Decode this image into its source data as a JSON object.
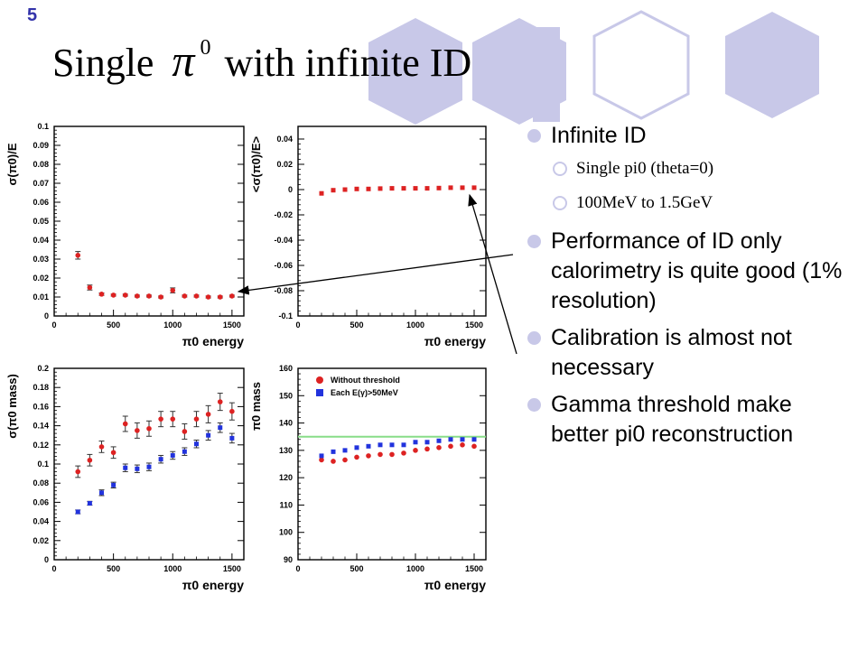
{
  "slide": {
    "number": "5",
    "title_pre": "Single",
    "title_symbol": "π",
    "title_symbol_sup": "0",
    "title_post": "with infinite ID"
  },
  "bullets": [
    {
      "level": 1,
      "text": "Infinite ID"
    },
    {
      "level": 2,
      "text": "Single pi0 (theta=0)"
    },
    {
      "level": 2,
      "text": "100MeV to 1.5GeV"
    },
    {
      "level": 1,
      "text": "Performance of ID only calorimetry is quite good (1% resolution)"
    },
    {
      "level": 1,
      "text": "Calibration is almost not necessary"
    },
    {
      "level": 1,
      "text": "Gamma threshold make better pi0 reconstruction"
    }
  ],
  "colors": {
    "red": "#dd2222",
    "blue": "#2233dd",
    "green": "#88dd88",
    "accent": "#c8c8e8"
  },
  "chart_data": [
    {
      "type": "scatter",
      "ylabel": "σ(π0)/E",
      "xlabel": "π0 energy",
      "xlim": [
        0,
        1600
      ],
      "ylim": [
        0,
        0.1
      ],
      "xticks": [
        "0",
        "500",
        "1000",
        "1500"
      ],
      "yticks": [
        "0",
        "0.01",
        "0.02",
        "0.03",
        "0.04",
        "0.05",
        "0.06",
        "0.07",
        "0.08",
        "0.09",
        "0.1"
      ],
      "series": [
        {
          "color": "#dd2222",
          "x": [
            200,
            300,
            400,
            500,
            600,
            700,
            800,
            900,
            1000,
            1100,
            1200,
            1300,
            1400,
            1500
          ],
          "y": [
            0.032,
            0.015,
            0.0115,
            0.011,
            0.011,
            0.0105,
            0.0105,
            0.01,
            0.0135,
            0.0105,
            0.0105,
            0.01,
            0.01,
            0.0105
          ],
          "err": [
            0.002,
            0.0013,
            0.0006,
            0.0005,
            0.0005,
            0.0005,
            0.0005,
            0.0005,
            0.0013,
            0.0005,
            0.0005,
            0.0005,
            0.0005,
            0.0005
          ]
        }
      ]
    },
    {
      "type": "scatter",
      "ylabel": "<σ(π0)/E>",
      "xlabel": "π0 energy",
      "xlim": [
        0,
        1600
      ],
      "ylim": [
        -0.1,
        0.05
      ],
      "xticks": [
        "0",
        "500",
        "1000",
        "1500"
      ],
      "yticks": [
        "-0.1",
        "-0.08",
        "-0.06",
        "-0.04",
        "-0.02",
        "0",
        "0.02",
        "0.04"
      ],
      "series": [
        {
          "color": "#dd2222",
          "x": [
            200,
            300,
            400,
            500,
            600,
            700,
            800,
            900,
            1000,
            1100,
            1200,
            1300,
            1400,
            1500
          ],
          "y": [
            -0.003,
            -0.0005,
            0,
            0.0005,
            0.0005,
            0.0008,
            0.001,
            0.001,
            0.001,
            0.001,
            0.0012,
            0.0015,
            0.0015,
            0.0015
          ],
          "err": [
            0,
            0,
            0,
            0,
            0,
            0,
            0,
            0,
            0,
            0,
            0,
            0,
            0,
            0
          ]
        }
      ]
    },
    {
      "type": "scatter",
      "ylabel": "σ(π0 mass)",
      "xlabel": "π0 energy",
      "xlim": [
        0,
        1600
      ],
      "ylim": [
        0,
        0.2
      ],
      "xticks": [
        "0",
        "500",
        "1000",
        "1500"
      ],
      "yticks": [
        "0",
        "0.02",
        "0.04",
        "0.06",
        "0.08",
        "0.1",
        "0.12",
        "0.14",
        "0.16",
        "0.18",
        "0.2"
      ],
      "series": [
        {
          "color": "#dd2222",
          "x": [
            200,
            300,
            400,
            500,
            600,
            700,
            800,
            900,
            1000,
            1100,
            1200,
            1300,
            1400,
            1500
          ],
          "y": [
            0.092,
            0.104,
            0.118,
            0.112,
            0.142,
            0.135,
            0.137,
            0.147,
            0.147,
            0.134,
            0.147,
            0.152,
            0.165,
            0.155
          ],
          "err": [
            0.006,
            0.006,
            0.006,
            0.006,
            0.008,
            0.008,
            0.008,
            0.008,
            0.008,
            0.008,
            0.008,
            0.009,
            0.009,
            0.009
          ]
        },
        {
          "color": "#2233dd",
          "x": [
            200,
            300,
            400,
            500,
            600,
            700,
            800,
            900,
            1000,
            1100,
            1200,
            1300,
            1400,
            1500
          ],
          "y": [
            0.05,
            0.059,
            0.07,
            0.078,
            0.096,
            0.095,
            0.097,
            0.105,
            0.109,
            0.113,
            0.121,
            0.13,
            0.138,
            0.127
          ],
          "err": [
            0.002,
            0.002,
            0.003,
            0.003,
            0.004,
            0.004,
            0.004,
            0.004,
            0.004,
            0.004,
            0.004,
            0.005,
            0.005,
            0.005
          ]
        }
      ]
    },
    {
      "type": "scatter",
      "ylabel": "π0 mass",
      "xlabel": "π0 energy",
      "xlim": [
        0,
        1600
      ],
      "ylim": [
        90,
        160
      ],
      "xticks": [
        "0",
        "500",
        "1000",
        "1500"
      ],
      "yticks": [
        "90",
        "100",
        "110",
        "120",
        "130",
        "140",
        "150",
        "160"
      ],
      "hline": 135,
      "legend": [
        "Without threshold",
        "Each E(γ)>50MeV"
      ],
      "legend_position": "top-left",
      "series": [
        {
          "name": "Without threshold",
          "color": "#dd2222",
          "x": [
            200,
            300,
            400,
            500,
            600,
            700,
            800,
            900,
            1000,
            1100,
            1200,
            1300,
            1400,
            1500
          ],
          "y": [
            126.5,
            126,
            126.5,
            127.5,
            128,
            128.5,
            128.5,
            129,
            130,
            130.5,
            131,
            131.5,
            132,
            131.5
          ],
          "err": [
            0,
            0,
            0,
            0,
            0,
            0,
            0,
            0,
            0,
            0,
            0,
            0,
            0,
            0
          ]
        },
        {
          "name": "Each E(γ)>50MeV",
          "color": "#2233dd",
          "x": [
            200,
            300,
            400,
            500,
            600,
            700,
            800,
            900,
            1000,
            1100,
            1200,
            1300,
            1400,
            1500
          ],
          "y": [
            128,
            129.5,
            130,
            131,
            131.5,
            132,
            132,
            132,
            133,
            133,
            133.5,
            134,
            134,
            134
          ],
          "err": [
            0,
            0,
            0,
            0,
            0,
            0,
            0,
            0,
            0,
            0,
            0,
            0,
            0,
            0
          ]
        }
      ]
    }
  ]
}
